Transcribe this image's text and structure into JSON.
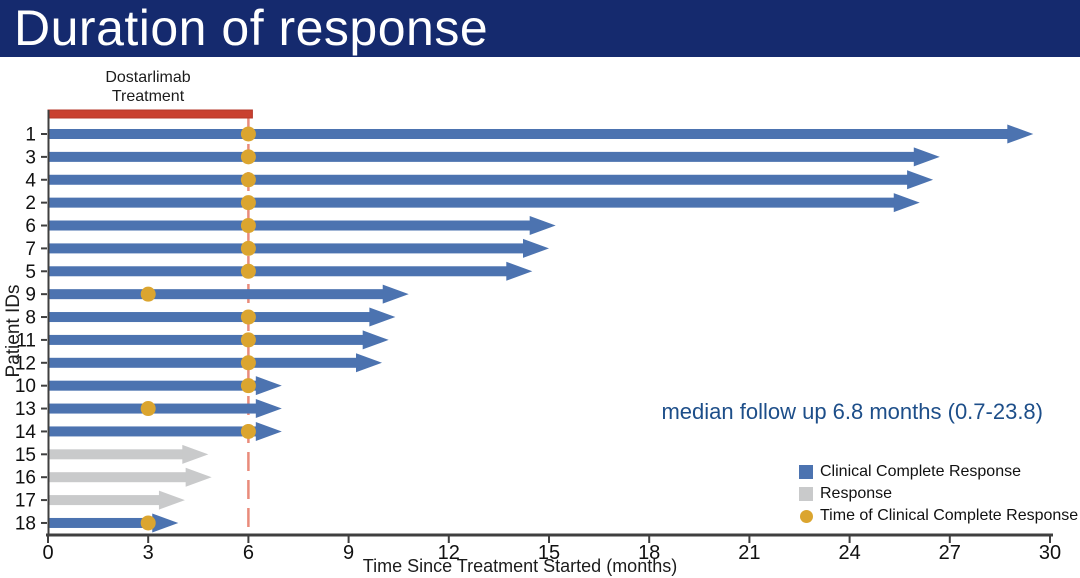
{
  "title": "Duration of response",
  "colors": {
    "title_bar_bg": "#152A6E",
    "title_text": "#FFFFFF",
    "ccr_bar": "#4C73B0",
    "response_bar": "#C9CACB",
    "ccr_dot": "#DBA52F",
    "treatment_bar": "#C9402F",
    "treatment_bar_edge": "#B5372A",
    "reference_line": "#E98B7B",
    "axis": "#3F3F3F",
    "axis_text": "#111111",
    "annotation_text": "#1D4E89"
  },
  "chart_data": {
    "type": "bar",
    "subtype": "swimmer_plot",
    "orientation": "horizontal",
    "title": "Duration of response",
    "xlabel": "Time Since Treatment Started (months)",
    "ylabel": "Patient IDs",
    "xlim": [
      0,
      30
    ],
    "x_ticks": [
      0,
      3,
      6,
      9,
      12,
      15,
      18,
      21,
      24,
      27,
      30
    ],
    "grid": false,
    "treatment_bar": {
      "label": "Dostarlimab\nTreatment",
      "start_month": 0,
      "end_month": 6
    },
    "reference_line_month": 6,
    "annotation": "median follow up 6.8 months (0.7-23.8)",
    "legend_position": "lower right",
    "legend": [
      {
        "label": "Clinical Complete Response",
        "swatch": "square",
        "color_key": "ccr_bar"
      },
      {
        "label": "Response",
        "swatch": "square",
        "color_key": "response_bar"
      },
      {
        "label": "Time of Clinical Complete Response",
        "swatch": "circle",
        "color_key": "ccr_dot"
      }
    ],
    "patients": [
      {
        "id": "1",
        "response_type": "clinical_complete_response",
        "duration_months": 29.5,
        "ccr_month": 6
      },
      {
        "id": "3",
        "response_type": "clinical_complete_response",
        "duration_months": 26.7,
        "ccr_month": 6
      },
      {
        "id": "4",
        "response_type": "clinical_complete_response",
        "duration_months": 26.5,
        "ccr_month": 6
      },
      {
        "id": "2",
        "response_type": "clinical_complete_response",
        "duration_months": 26.1,
        "ccr_month": 6
      },
      {
        "id": "6",
        "response_type": "clinical_complete_response",
        "duration_months": 15.2,
        "ccr_month": 6
      },
      {
        "id": "7",
        "response_type": "clinical_complete_response",
        "duration_months": 15.0,
        "ccr_month": 6
      },
      {
        "id": "5",
        "response_type": "clinical_complete_response",
        "duration_months": 14.5,
        "ccr_month": 6
      },
      {
        "id": "9",
        "response_type": "clinical_complete_response",
        "duration_months": 10.8,
        "ccr_month": 3
      },
      {
        "id": "8",
        "response_type": "clinical_complete_response",
        "duration_months": 10.4,
        "ccr_month": 6
      },
      {
        "id": "11",
        "response_type": "clinical_complete_response",
        "duration_months": 10.2,
        "ccr_month": 6
      },
      {
        "id": "12",
        "response_type": "clinical_complete_response",
        "duration_months": 10.0,
        "ccr_month": 6
      },
      {
        "id": "10",
        "response_type": "clinical_complete_response",
        "duration_months": 7.0,
        "ccr_month": 6
      },
      {
        "id": "13",
        "response_type": "clinical_complete_response",
        "duration_months": 7.0,
        "ccr_month": 3
      },
      {
        "id": "14",
        "response_type": "clinical_complete_response",
        "duration_months": 7.0,
        "ccr_month": 6
      },
      {
        "id": "15",
        "response_type": "response",
        "duration_months": 4.8,
        "ccr_month": null
      },
      {
        "id": "16",
        "response_type": "response",
        "duration_months": 4.9,
        "ccr_month": null
      },
      {
        "id": "17",
        "response_type": "response",
        "duration_months": 4.1,
        "ccr_month": null
      },
      {
        "id": "18",
        "response_type": "clinical_complete_response",
        "duration_months": 3.9,
        "ccr_month": 3
      }
    ]
  }
}
